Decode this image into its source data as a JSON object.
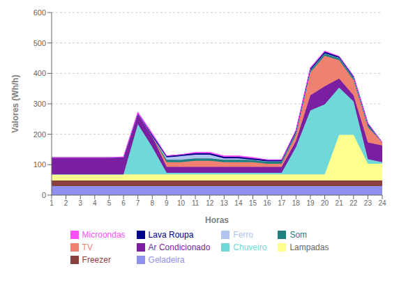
{
  "chart_data": {
    "type": "area",
    "stacked": true,
    "xlabel": "Horas",
    "ylabel": "Valores (Wh/h)",
    "x": [
      1,
      2,
      3,
      4,
      5,
      6,
      7,
      8,
      9,
      10,
      11,
      12,
      13,
      14,
      15,
      16,
      17,
      18,
      19,
      20,
      21,
      22,
      23,
      24
    ],
    "xlim": [
      1,
      24
    ],
    "xticks": [
      1,
      2,
      3,
      4,
      5,
      6,
      7,
      8,
      9,
      10,
      11,
      12,
      13,
      14,
      15,
      16,
      17,
      18,
      19,
      20,
      21,
      22,
      23,
      24
    ],
    "ylim": [
      0,
      600
    ],
    "yticks": [
      0,
      100,
      200,
      300,
      400,
      500,
      600
    ],
    "grid": true,
    "legend": "bottom",
    "series": [
      {
        "name": "Geladeira",
        "color": "#9090ee",
        "values": [
          30,
          30,
          30,
          30,
          30,
          30,
          30,
          30,
          30,
          30,
          30,
          30,
          30,
          30,
          30,
          30,
          30,
          30,
          30,
          30,
          30,
          30,
          30,
          30
        ]
      },
      {
        "name": "Freezer",
        "color": "#8b4040",
        "values": [
          18,
          18,
          18,
          18,
          18,
          18,
          18,
          18,
          18,
          18,
          18,
          18,
          18,
          18,
          18,
          18,
          18,
          18,
          18,
          18,
          18,
          18,
          18,
          18
        ]
      },
      {
        "name": "Lampadas",
        "color": "#ffff90",
        "values": [
          20,
          20,
          20,
          20,
          20,
          20,
          20,
          20,
          20,
          20,
          20,
          20,
          20,
          20,
          20,
          20,
          20,
          20,
          20,
          20,
          150,
          150,
          55,
          55
        ]
      },
      {
        "name": "Chuveiro",
        "color": "#70d8d8",
        "values": [
          0,
          0,
          0,
          0,
          0,
          0,
          165,
          90,
          5,
          5,
          5,
          5,
          5,
          5,
          5,
          5,
          5,
          90,
          210,
          230,
          155,
          110,
          15,
          5
        ]
      },
      {
        "name": "Ar Condicionado",
        "color": "#7b1fa2",
        "values": [
          55,
          55,
          55,
          55,
          55,
          55,
          35,
          35,
          20,
          20,
          20,
          20,
          20,
          20,
          20,
          20,
          20,
          20,
          50,
          60,
          30,
          20,
          55,
          55
        ]
      },
      {
        "name": "TV",
        "color": "#f08070",
        "values": [
          0,
          0,
          0,
          0,
          0,
          0,
          0,
          0,
          15,
          15,
          20,
          20,
          15,
          15,
          15,
          10,
          10,
          20,
          75,
          100,
          60,
          50,
          50,
          10
        ]
      },
      {
        "name": "Som",
        "color": "#208080",
        "values": [
          0,
          0,
          0,
          0,
          0,
          0,
          0,
          0,
          8,
          8,
          8,
          8,
          8,
          8,
          8,
          8,
          8,
          8,
          8,
          8,
          8,
          8,
          8,
          0
        ]
      },
      {
        "name": "Ferro",
        "color": "#b0c4f0",
        "values": [
          0,
          0,
          0,
          0,
          0,
          0,
          0,
          0,
          8,
          12,
          12,
          12,
          5,
          5,
          0,
          0,
          0,
          0,
          0,
          0,
          0,
          0,
          0,
          0
        ]
      },
      {
        "name": "Lava Roupa",
        "color": "#00008b",
        "values": [
          0,
          0,
          0,
          0,
          0,
          0,
          0,
          5,
          5,
          5,
          5,
          5,
          5,
          5,
          5,
          5,
          5,
          5,
          5,
          5,
          5,
          5,
          5,
          0
        ]
      },
      {
        "name": "Microondas",
        "color": "#ff50ff",
        "values": [
          0,
          0,
          0,
          0,
          0,
          3,
          5,
          5,
          0,
          0,
          3,
          3,
          3,
          3,
          3,
          0,
          0,
          3,
          3,
          3,
          0,
          0,
          0,
          0
        ]
      }
    ]
  }
}
